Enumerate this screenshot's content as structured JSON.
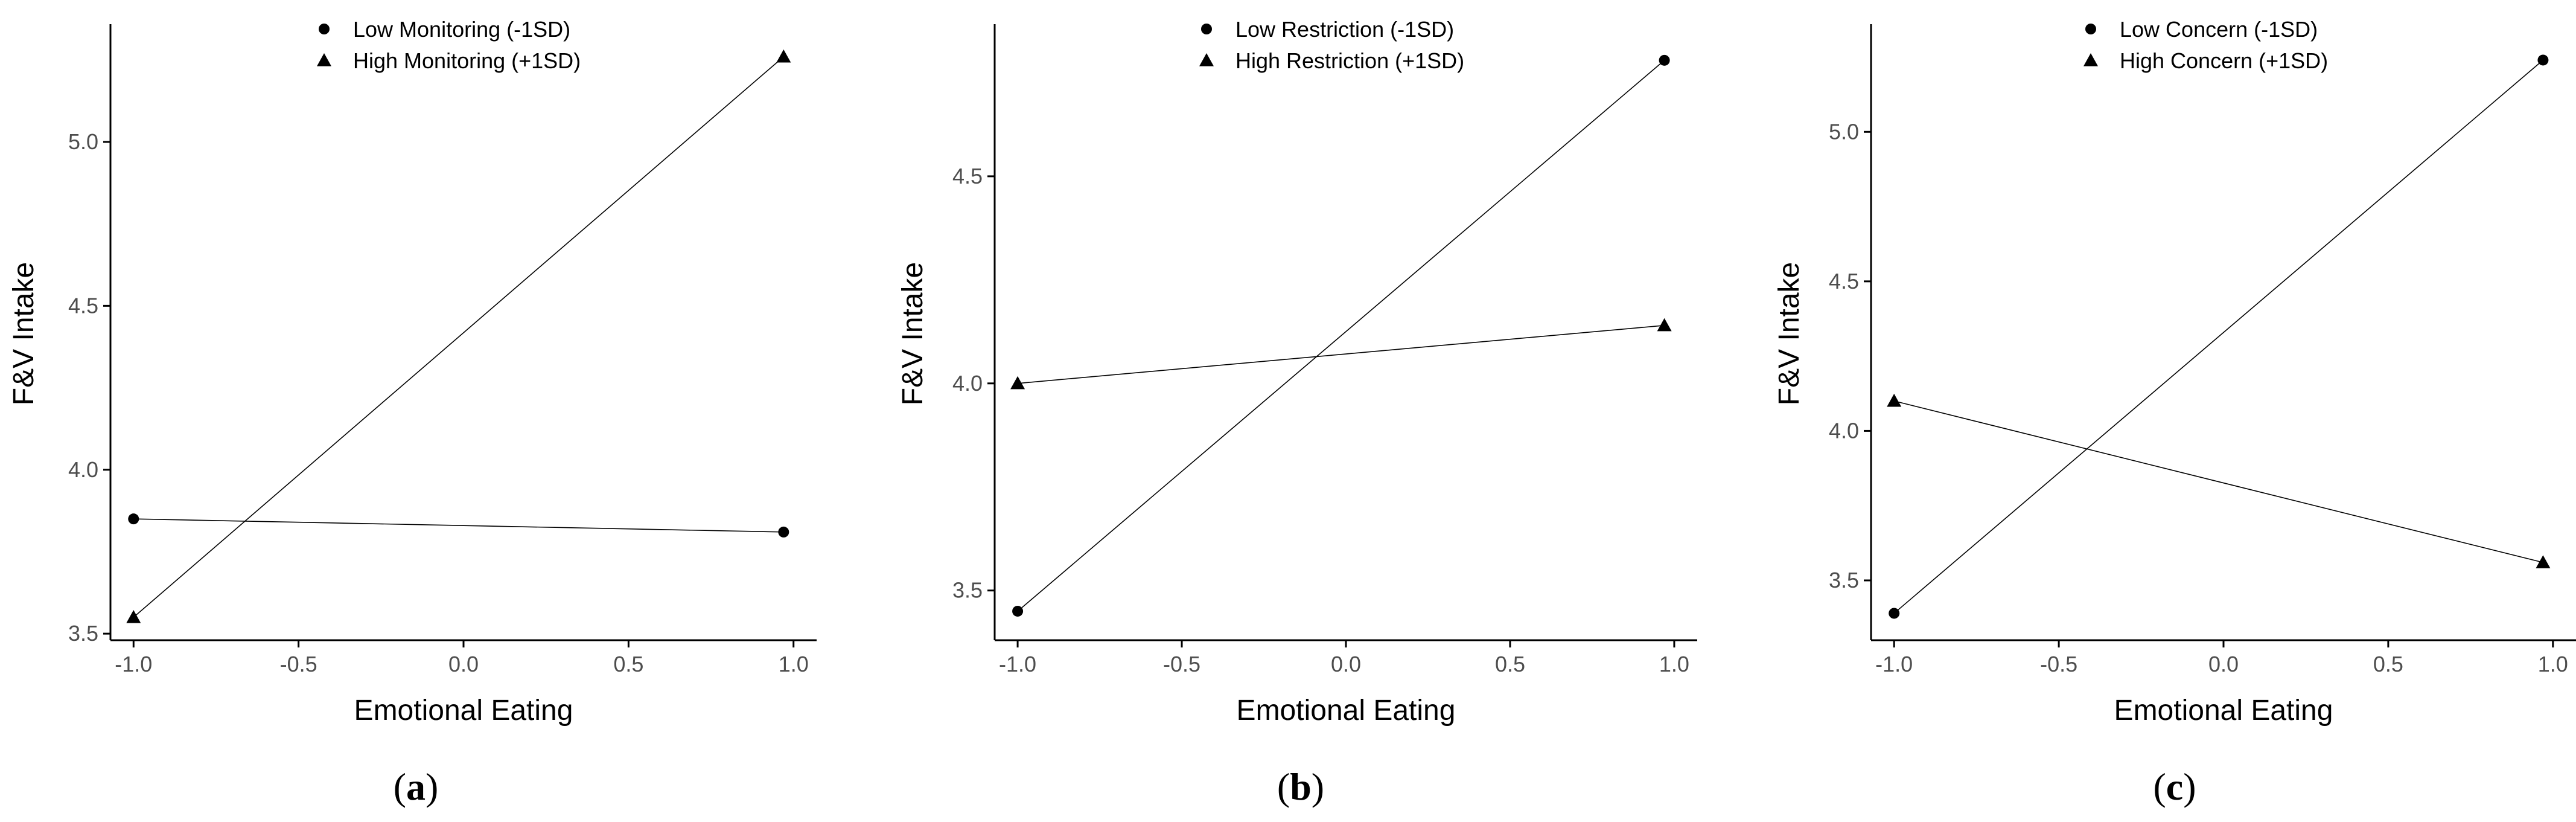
{
  "chart_data": [
    {
      "id": "a",
      "type": "line",
      "caption": {
        "open": "(",
        "letter": "a",
        "close": ")"
      },
      "xlabel": "Emotional Eating",
      "ylabel": "F&V Intake",
      "xlim": [
        -1.07,
        1.07
      ],
      "ylim": [
        3.48,
        5.35
      ],
      "xticks": [
        -1.0,
        -0.5,
        0.0,
        0.5,
        1.0
      ],
      "xtick_labels": [
        "-1.0",
        "-0.5",
        "0.0",
        "0.5",
        "1.0"
      ],
      "yticks": [
        3.5,
        4.0,
        4.5,
        5.0
      ],
      "ytick_labels": [
        "3.5",
        "4.0",
        "4.5",
        "5.0"
      ],
      "legend_position": "top-center",
      "series": [
        {
          "name": "Low Monitoring (-1SD)",
          "marker": "circle",
          "x": [
            -1.0,
            0.97
          ],
          "y": [
            3.85,
            3.81
          ]
        },
        {
          "name": "High Monitoring (+1SD)",
          "marker": "triangle",
          "x": [
            -1.0,
            0.97
          ],
          "y": [
            3.55,
            5.26
          ]
        }
      ]
    },
    {
      "id": "b",
      "type": "line",
      "caption": {
        "open": "(",
        "letter": "b",
        "close": ")"
      },
      "xlabel": "Emotional Eating",
      "ylabel": "F&V Intake",
      "xlim": [
        -1.07,
        1.07
      ],
      "ylim": [
        3.38,
        4.86
      ],
      "xticks": [
        -1.0,
        -0.5,
        0.0,
        0.5,
        1.0
      ],
      "xtick_labels": [
        "-1.0",
        "-0.5",
        "0.0",
        "0.5",
        "1.0"
      ],
      "yticks": [
        3.5,
        4.0,
        4.5
      ],
      "ytick_labels": [
        "3.5",
        "4.0",
        "4.5"
      ],
      "legend_position": "top-center",
      "series": [
        {
          "name": "Low Restriction (-1SD)",
          "marker": "circle",
          "x": [
            -1.0,
            0.97
          ],
          "y": [
            3.45,
            4.78
          ]
        },
        {
          "name": "High Restriction (+1SD)",
          "marker": "triangle",
          "x": [
            -1.0,
            0.97
          ],
          "y": [
            4.0,
            4.14
          ]
        }
      ]
    },
    {
      "id": "c",
      "type": "line",
      "caption": {
        "open": "(",
        "letter": "c",
        "close": ")"
      },
      "xlabel": "Emotional Eating",
      "ylabel": "F&V Intake",
      "xlim": [
        -1.07,
        1.07
      ],
      "ylim": [
        3.3,
        5.35
      ],
      "xticks": [
        -1.0,
        -0.5,
        0.0,
        0.5,
        1.0
      ],
      "xtick_labels": [
        "-1.0",
        "-0.5",
        "0.0",
        "0.5",
        "1.0"
      ],
      "yticks": [
        3.5,
        4.0,
        4.5,
        5.0
      ],
      "ytick_labels": [
        "3.5",
        "4.0",
        "4.5",
        "5.0"
      ],
      "legend_position": "top-center",
      "series": [
        {
          "name": "Low Concern (-1SD)",
          "marker": "circle",
          "x": [
            -1.0,
            0.97
          ],
          "y": [
            3.39,
            5.24
          ]
        },
        {
          "name": "High Concern (+1SD)",
          "marker": "triangle",
          "x": [
            -1.0,
            0.97
          ],
          "y": [
            4.1,
            3.56
          ]
        }
      ]
    }
  ]
}
